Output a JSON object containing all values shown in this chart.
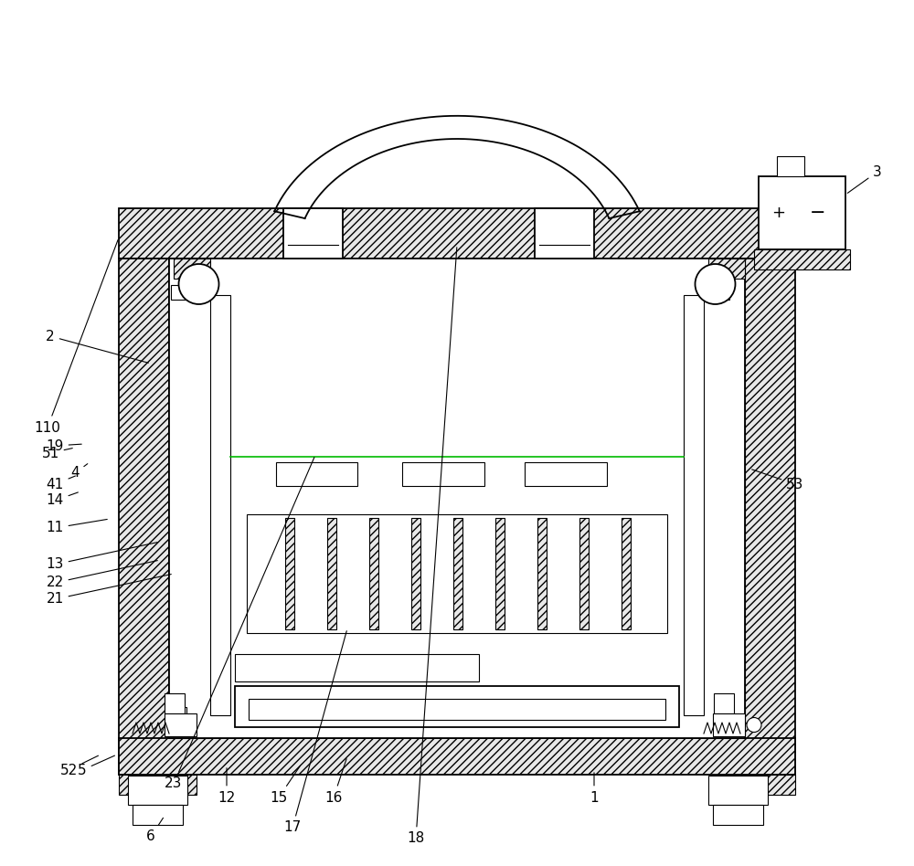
{
  "bg_color": "#ffffff",
  "line_color": "#000000",
  "fig_width": 10.0,
  "fig_height": 9.48
}
